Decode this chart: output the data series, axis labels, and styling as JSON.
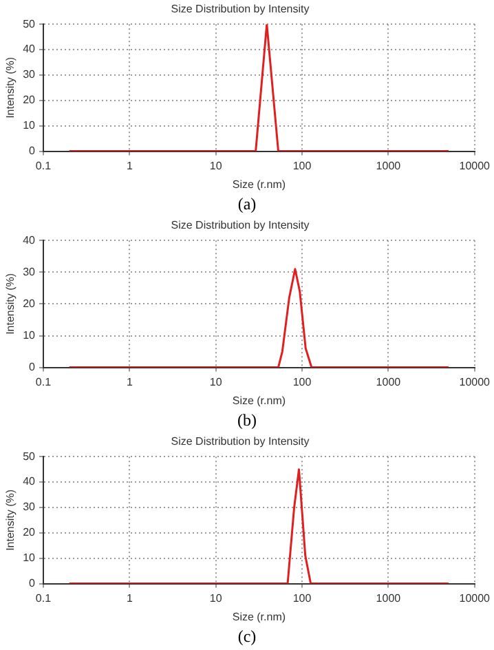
{
  "chart_data": [
    {
      "type": "line",
      "title": "Size Distribution by Intensity",
      "xlabel": "Size (r.nm)",
      "ylabel": "Intensity (%)",
      "annotations": [
        "(a)"
      ],
      "log": "x",
      "grid": true,
      "marker": "none",
      "line_style": "solid",
      "xlim": [
        0.1,
        10000
      ],
      "xticks": [
        0.1,
        1,
        10,
        100,
        1000,
        10000
      ],
      "ylim": [
        0,
        50
      ],
      "yticks": [
        0,
        10,
        20,
        30,
        40,
        50
      ],
      "series": [
        {
          "color": "#e02020",
          "x": [
            0.2,
            29,
            39,
            53,
            5000
          ],
          "values": [
            0,
            0,
            50,
            0,
            0
          ]
        }
      ]
    },
    {
      "type": "line",
      "title": "Size Distribution by Intensity",
      "xlabel": "Size (r.nm)",
      "ylabel": "Intensity (%)",
      "annotations": [
        "(b)"
      ],
      "log": "x",
      "grid": true,
      "marker": "none",
      "line_style": "solid",
      "xlim": [
        0.1,
        10000
      ],
      "xticks": [
        0.1,
        1,
        10,
        100,
        1000,
        10000
      ],
      "ylim": [
        0,
        40
      ],
      "yticks": [
        0,
        10,
        20,
        30,
        40
      ],
      "series": [
        {
          "color": "#e02020",
          "x": [
            0.2,
            53,
            59,
            71,
            83,
            94,
            110,
            129,
            5000
          ],
          "values": [
            0,
            0,
            5,
            22,
            31,
            24,
            6,
            0,
            0
          ]
        }
      ]
    },
    {
      "type": "line",
      "title": "Size Distribution by Intensity",
      "xlabel": "Size (r.nm)",
      "ylabel": "Intensity (%)",
      "annotations": [
        "(c)"
      ],
      "log": "x",
      "grid": true,
      "marker": "none",
      "line_style": "solid",
      "xlim": [
        0.1,
        10000
      ],
      "xticks": [
        0.1,
        1,
        10,
        100,
        1000,
        10000
      ],
      "ylim": [
        0,
        50
      ],
      "yticks": [
        0,
        10,
        20,
        30,
        40,
        50
      ],
      "series": [
        {
          "color": "#e02020",
          "x": [
            0.2,
            68,
            81,
            92,
            109,
            126,
            5000
          ],
          "values": [
            0,
            0,
            30,
            45,
            11,
            0,
            0
          ]
        }
      ]
    }
  ]
}
